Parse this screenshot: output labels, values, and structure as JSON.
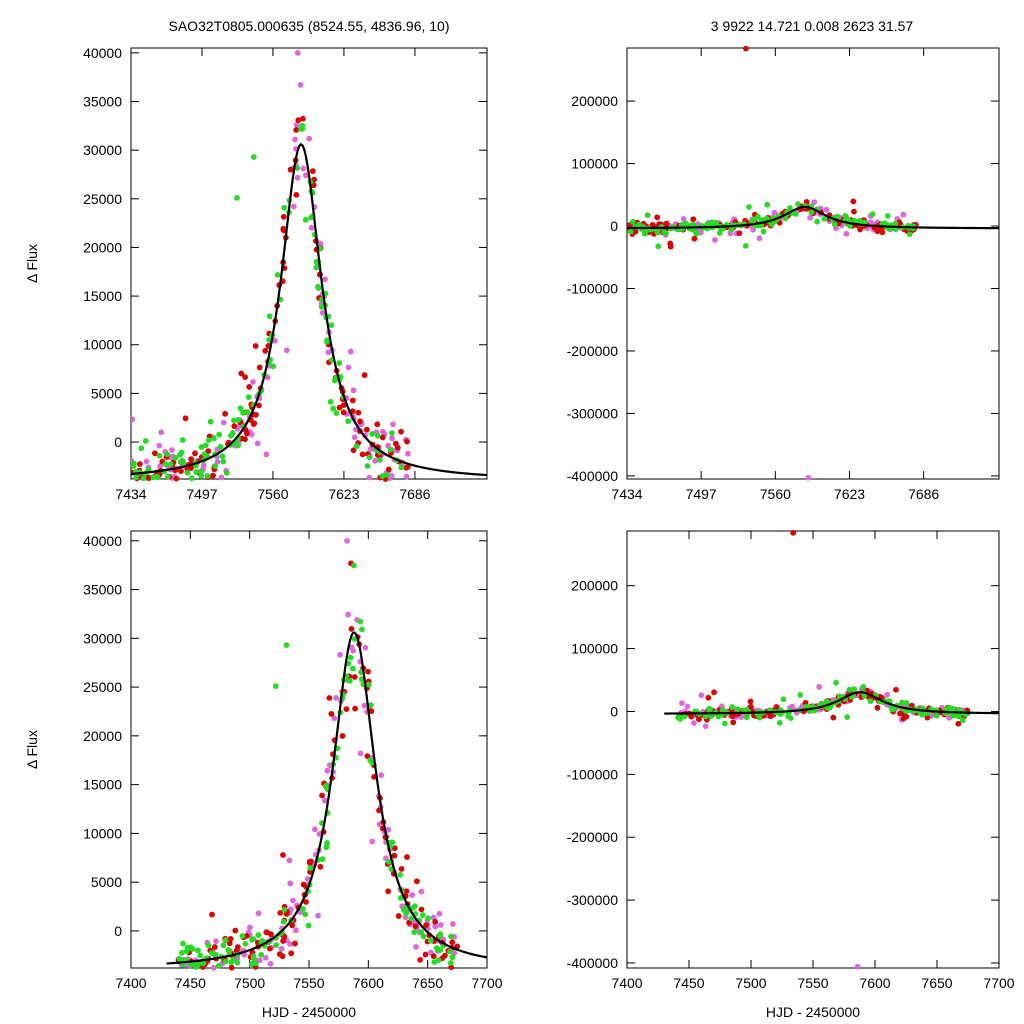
{
  "header": {
    "left_title": "SAO32T0805.000635 (8524.55, 4836.96,   10)",
    "right_title": "3   9922   14.721   0.008   2623   31.57"
  },
  "colors": {
    "red": "#dd0000",
    "green": "#22dd22",
    "violet": "#e066e0",
    "fit": "#000000"
  },
  "chart_data": [
    {
      "id": "top-left",
      "type": "scatter",
      "ylabel": "Δ Flux",
      "xlabel": "",
      "xlim": [
        7434,
        7750
      ],
      "ylim": [
        -3800,
        40500
      ],
      "xticks": [
        7434,
        7497,
        7560,
        7623,
        7686
      ],
      "yticks": [
        0,
        5000,
        10000,
        15000,
        20000,
        25000,
        30000,
        35000,
        40000
      ],
      "grid": false,
      "fit": {
        "amplitude": 34600,
        "center": 7585,
        "width": 22,
        "offset": -4000,
        "x_range": [
          7434,
          7750
        ]
      },
      "point_range": [
        7434,
        7680
      ],
      "outliers": [
        {
          "x": 7582,
          "y": 40000,
          "color": "violet"
        },
        {
          "x": 7543,
          "y": 29300,
          "color": "green"
        },
        {
          "x": 7528,
          "y": 25100,
          "color": "green"
        }
      ]
    },
    {
      "id": "top-right",
      "type": "scatter",
      "ylabel": "",
      "xlabel": "",
      "xlim": [
        7434,
        7750
      ],
      "ylim": [
        -405000,
        285000
      ],
      "xticks": [
        7434,
        7497,
        7560,
        7623,
        7686
      ],
      "yticks": [
        -400000,
        -300000,
        -200000,
        -100000,
        0,
        100000,
        200000
      ],
      "grid": false,
      "fit": {
        "amplitude": 34600,
        "center": 7585,
        "width": 22,
        "offset": -4000,
        "x_range": [
          7434,
          7750
        ]
      },
      "point_range": [
        7434,
        7680
      ],
      "outliers": [
        {
          "x": 7535,
          "y": 284000,
          "color": "red"
        },
        {
          "x": 7588,
          "y": -403000,
          "color": "violet"
        }
      ]
    },
    {
      "id": "bottom-left",
      "type": "scatter",
      "ylabel": "Δ Flux",
      "xlabel": "HJD - 2450000",
      "xlim": [
        7400,
        7700
      ],
      "ylim": [
        -3800,
        41000
      ],
      "xticks": [
        7400,
        7450,
        7500,
        7550,
        7600,
        7650,
        7700
      ],
      "yticks": [
        0,
        5000,
        10000,
        15000,
        20000,
        25000,
        30000,
        35000,
        40000
      ],
      "grid": false,
      "fit": {
        "amplitude": 34600,
        "center": 7588,
        "width": 22,
        "offset": -4000,
        "x_range": [
          7430,
          7700
        ]
      },
      "point_range": [
        7440,
        7675
      ],
      "outliers": [
        {
          "x": 7582,
          "y": 40000,
          "color": "violet"
        },
        {
          "x": 7531,
          "y": 29300,
          "color": "green"
        },
        {
          "x": 7522,
          "y": 25100,
          "color": "green"
        }
      ]
    },
    {
      "id": "bottom-right",
      "type": "scatter",
      "ylabel": "",
      "xlabel": "HJD - 2450000",
      "xlim": [
        7400,
        7700
      ],
      "ylim": [
        -408000,
        287000
      ],
      "xticks": [
        7400,
        7450,
        7500,
        7550,
        7600,
        7650,
        7700
      ],
      "yticks": [
        -400000,
        -300000,
        -200000,
        -100000,
        0,
        100000,
        200000
      ],
      "grid": false,
      "fit": {
        "amplitude": 34600,
        "center": 7588,
        "width": 22,
        "offset": -4000,
        "x_range": [
          7430,
          7700
        ]
      },
      "point_range": [
        7440,
        7675
      ],
      "outliers": [
        {
          "x": 7534,
          "y": 284000,
          "color": "red"
        },
        {
          "x": 7586,
          "y": -406000,
          "color": "violet"
        }
      ]
    }
  ]
}
